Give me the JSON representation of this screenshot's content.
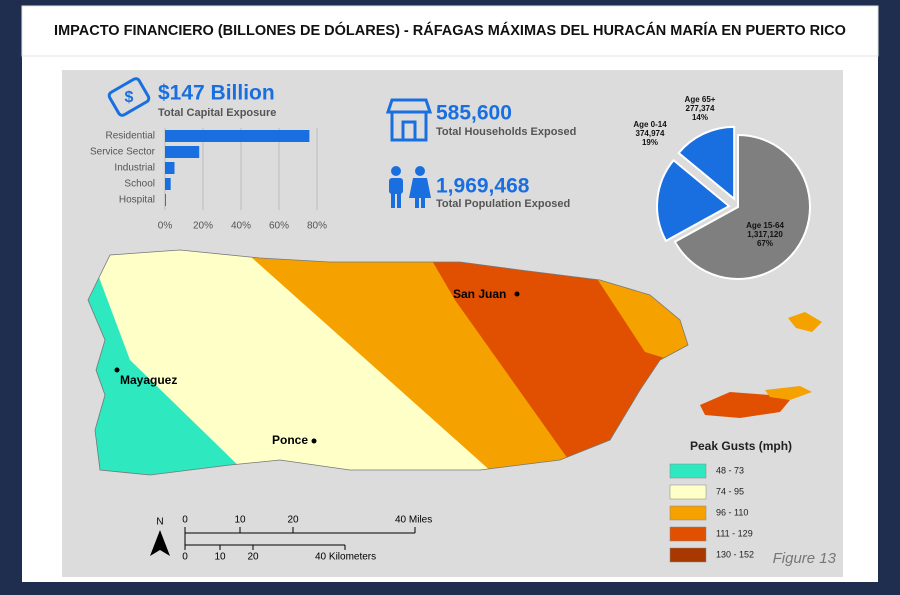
{
  "title": "IMPACTO FINANCIERO (BILLONES DE DÓLARES)  - RÁFAGAS MÁXIMAS DEL HURACÁN MARÍA EN PUERTO RICO",
  "capital": {
    "amount": "$147 Billion",
    "label": "Total Capital Exposure"
  },
  "households": {
    "amount": "585,600",
    "label": "Total Households Exposed"
  },
  "population": {
    "amount": "1,969,468",
    "label": "Total Population Exposed"
  },
  "chart_data": [
    {
      "type": "bar",
      "orientation": "horizontal",
      "categories": [
        "Residential",
        "Service Sector",
        "Industrial",
        "School",
        "Hospital"
      ],
      "values": [
        76,
        18,
        5,
        3,
        0.5
      ],
      "color": "#1a6fe0",
      "xlim": [
        0,
        80
      ],
      "xticks": [
        {
          "value": 0,
          "label": "0%"
        },
        {
          "value": 20,
          "label": "20%"
        },
        {
          "value": 40,
          "label": "40%"
        },
        {
          "value": 60,
          "label": "60%"
        },
        {
          "value": 80,
          "label": "80%"
        }
      ],
      "grid": true
    },
    {
      "type": "pie",
      "categories": [
        "Age 15-64",
        "Age 0-14",
        "Age 65+"
      ],
      "count_labels": [
        "1,317,120",
        "374,974",
        "277,374"
      ],
      "values": [
        67,
        19,
        14
      ],
      "value_labels": [
        "67%",
        "19%",
        "14%"
      ],
      "colors": [
        "#7f7f7f",
        "#1a6fe0",
        "#1a6fe0"
      ]
    }
  ],
  "map": {
    "legend_title": "Peak Gusts (mph)",
    "legend": [
      {
        "label": "48 - 73",
        "color": "#2ee8c0"
      },
      {
        "label": "74 - 95",
        "color": "#ffffc8"
      },
      {
        "label": "96 - 110",
        "color": "#f5a100"
      },
      {
        "label": "111 - 129",
        "color": "#e05000"
      },
      {
        "label": "130 - 152",
        "color": "#a83800"
      }
    ],
    "cities": [
      "San Juan",
      "Mayaguez",
      "Ponce"
    ],
    "north": "N",
    "miles": [
      "0",
      "10",
      "20",
      "40 Miles"
    ],
    "kilometers": [
      "0",
      "10",
      "20",
      "40 Kilometers"
    ]
  },
  "figure_label": "Figure 13"
}
